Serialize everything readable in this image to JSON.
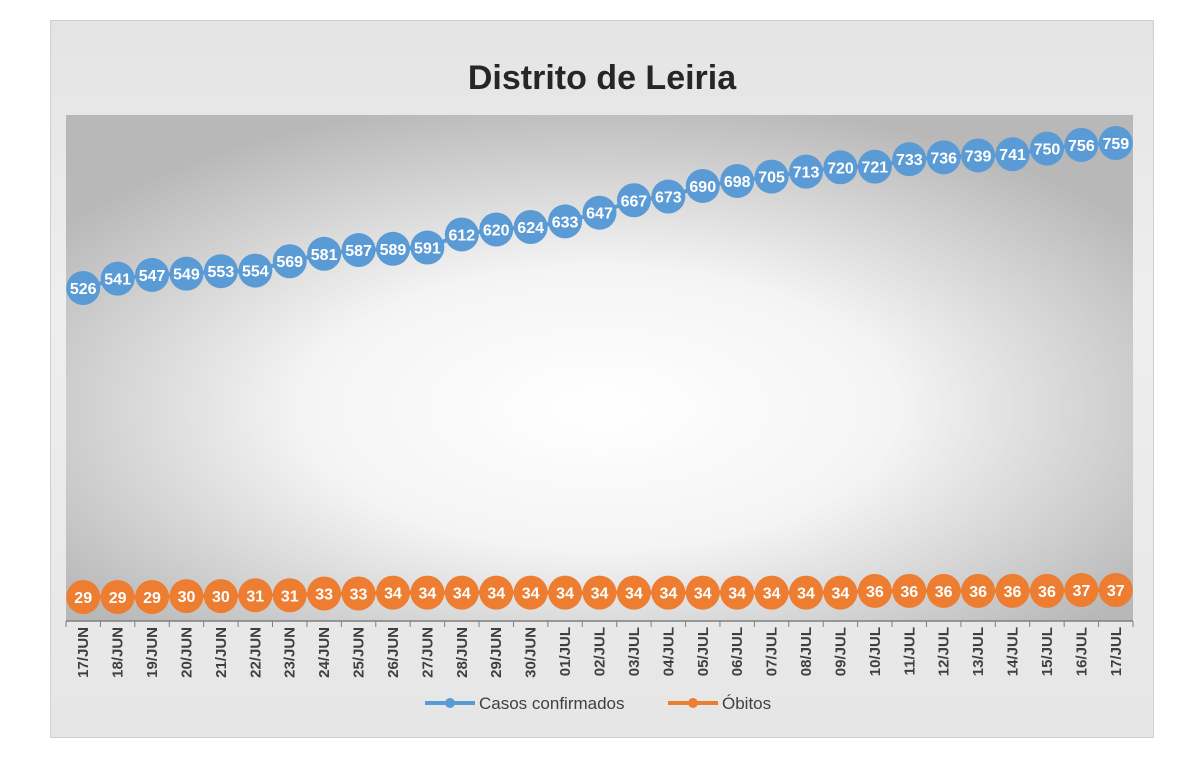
{
  "chart_data": {
    "type": "line",
    "title": "Distrito de Leiria",
    "categories": [
      "17/JUN",
      "18/JUN",
      "19/JUN",
      "20/JUN",
      "21/JUN",
      "22/JUN",
      "23/JUN",
      "24/JUN",
      "25/JUN",
      "26/JUN",
      "27/JUN",
      "28/JUN",
      "29/JUN",
      "30/JUN",
      "01/JUL",
      "02/JUL",
      "03/JUL",
      "04/JUL",
      "05/JUL",
      "06/JUL",
      "07/JUL",
      "08/JUL",
      "09/JUL",
      "10/JUL",
      "11/JUL",
      "12/JUL",
      "13/JUL",
      "14/JUL",
      "15/JUL",
      "16/JUL",
      "17/JUL"
    ],
    "series": [
      {
        "name": "Casos confirmados",
        "color": "#5b9bd5",
        "values": [
          526,
          541,
          547,
          549,
          553,
          554,
          569,
          581,
          587,
          589,
          591,
          612,
          620,
          624,
          633,
          647,
          667,
          673,
          690,
          698,
          705,
          713,
          720,
          721,
          733,
          736,
          739,
          741,
          750,
          756,
          759
        ]
      },
      {
        "name": "Óbitos",
        "color": "#ed7d31",
        "values": [
          29,
          29,
          29,
          30,
          30,
          31,
          31,
          33,
          33,
          34,
          34,
          34,
          34,
          34,
          34,
          34,
          34,
          34,
          34,
          34,
          34,
          34,
          34,
          36,
          36,
          36,
          36,
          36,
          36,
          37,
          37
        ]
      }
    ],
    "data_labels": true,
    "legend_position": "bottom",
    "grid": false
  }
}
